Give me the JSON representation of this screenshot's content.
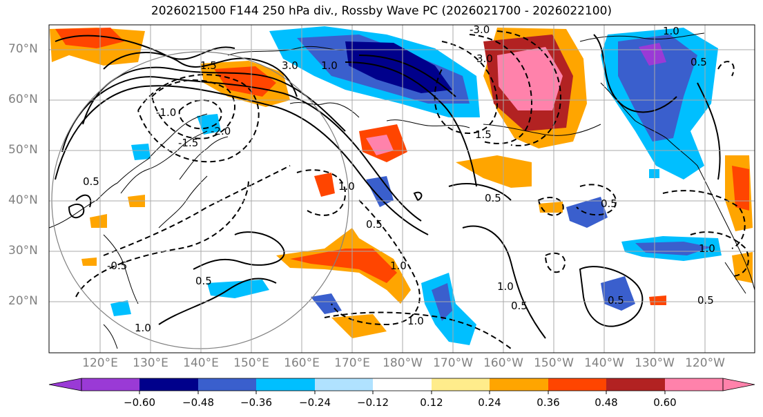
{
  "title": "2026021500 F144 250 hPa div., Rossby Wave PC (2026021700 - 2026022100)",
  "map": {
    "lat_labels": [
      "70°N",
      "60°N",
      "50°N",
      "40°N",
      "30°N",
      "20°N"
    ],
    "lon_labels": [
      "120°E",
      "130°E",
      "140°E",
      "150°E",
      "160°E",
      "170°E",
      "180°W",
      "170°W",
      "160°W",
      "150°W",
      "140°W",
      "130°W",
      "120°W"
    ],
    "contour_labels": [
      "3.0",
      "1.5",
      "1.0",
      "0.5",
      "-3.0",
      "-2.0",
      "-1.5",
      "-1.0",
      "-0.5",
      "0.5",
      "1.0",
      "3.0",
      "1.0",
      "0.5",
      "1.5",
      "1.0",
      "1.0",
      "0.5",
      "0.5",
      "0.5",
      "1.0",
      "1.0",
      "0.5",
      "0.5",
      "0.5",
      "1.0"
    ]
  },
  "colorbar": {
    "ticks": [
      "−0.60",
      "−0.48",
      "−0.36",
      "−0.24",
      "−0.12",
      "0.12",
      "0.24",
      "0.36",
      "0.48",
      "0.60"
    ],
    "colors": [
      "#9a3ad6",
      "#00008b",
      "#3a5fcd",
      "#00bfff",
      "#b0e2ff",
      "#ffffff",
      "#ffec8b",
      "#ffa500",
      "#ff4500",
      "#b22222",
      "#ff82ab"
    ]
  }
}
